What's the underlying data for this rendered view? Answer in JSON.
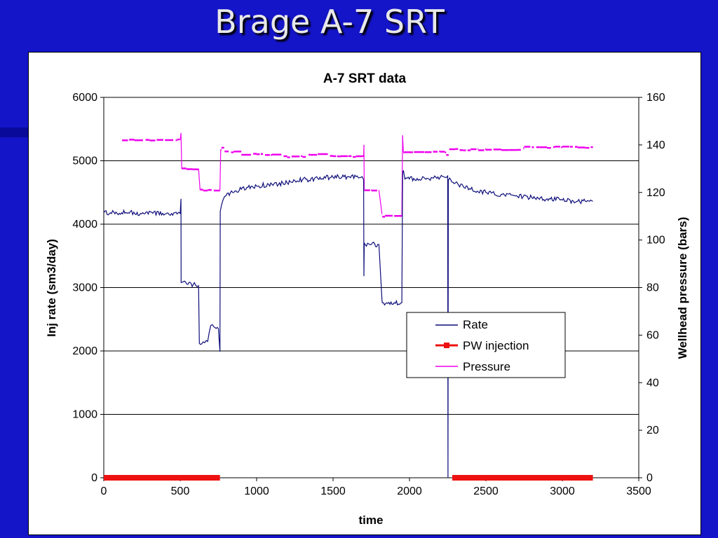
{
  "slide": {
    "title": "Brage A-7 SRT"
  },
  "chart_data": {
    "type": "line",
    "title": "A-7 SRT data",
    "xlabel": "time",
    "ylabel": "Inj rate (sm3/day)",
    "y2label": "Wellhead pressure (bars)",
    "xlim": [
      0,
      3500
    ],
    "ylim": [
      0,
      6000
    ],
    "y2lim": [
      0,
      160
    ],
    "xticks": [
      "0",
      "500",
      "1000",
      "1500",
      "2000",
      "2500",
      "3000",
      "3500"
    ],
    "yticks": [
      "0",
      "1000",
      "2000",
      "3000",
      "4000",
      "5000",
      "6000"
    ],
    "y2ticks": [
      "0",
      "20",
      "40",
      "60",
      "80",
      "100",
      "120",
      "140",
      "160"
    ],
    "grid": "horizontal",
    "legend_position": "lower-right",
    "colors": {
      "Rate": "#0d0d7a",
      "PW injection": "#ee1111",
      "Pressure": "#ee00ee"
    },
    "series": [
      {
        "name": "Rate",
        "axis": "left",
        "style": "line",
        "x": [
          0,
          80,
          160,
          240,
          320,
          400,
          480,
          500,
          505,
          506,
          550,
          600,
          620,
          625,
          640,
          660,
          680,
          700,
          720,
          750,
          760,
          762,
          770,
          780,
          800,
          850,
          900,
          1000,
          1100,
          1200,
          1300,
          1400,
          1500,
          1600,
          1650,
          1690,
          1700,
          1702,
          1704,
          1710,
          1750,
          1800,
          1820,
          1822,
          1830,
          1900,
          1950,
          1955,
          1960,
          1970,
          2050,
          2150,
          2230,
          2250,
          2252,
          2254,
          2256,
          2270,
          2300,
          2400,
          2500,
          2600,
          2700,
          2800,
          2900,
          3000,
          3100,
          3200
        ],
        "y": [
          4180,
          4190,
          4180,
          4170,
          4170,
          4160,
          4160,
          4170,
          4400,
          3080,
          3050,
          3040,
          3030,
          2120,
          2110,
          2130,
          2150,
          2400,
          2380,
          2350,
          1990,
          4200,
          4300,
          4380,
          4450,
          4500,
          4550,
          4600,
          4630,
          4650,
          4700,
          4720,
          4740,
          4750,
          4750,
          4750,
          4700,
          3180,
          3700,
          3680,
          3680,
          3680,
          2800,
          2760,
          2760,
          2760,
          2760,
          4800,
          4850,
          4710,
          4720,
          4730,
          4740,
          4760,
          0,
          4700,
          4700,
          4700,
          4650,
          4550,
          4500,
          4470,
          4450,
          4420,
          4400,
          4380,
          4360,
          4360
        ]
      },
      {
        "name": "PW injection",
        "axis": "left",
        "style": "markers",
        "ranges": [
          [
            0,
            760
          ],
          [
            2280,
            3200
          ]
        ],
        "y": 0
      },
      {
        "name": "Pressure",
        "axis": "right",
        "style": "line",
        "x": [
          120,
          200,
          300,
          400,
          480,
          500,
          505,
          510,
          540,
          580,
          620,
          630,
          650,
          680,
          720,
          760,
          765,
          770,
          790,
          850,
          900,
          1000,
          1100,
          1200,
          1300,
          1350,
          1400,
          1500,
          1550,
          1600,
          1650,
          1690,
          1700,
          1702,
          1704,
          1710,
          1750,
          1800,
          1820,
          1822,
          1840,
          1900,
          1950,
          1955,
          1960,
          1965,
          2000,
          2100,
          2200,
          2230,
          2232,
          2240,
          2260,
          2300,
          2350,
          2400,
          2450,
          2500,
          2550,
          2600,
          2650,
          2700,
          2750,
          2800,
          2850,
          2900,
          2950,
          3000,
          3050,
          3100,
          3150,
          3200
        ],
        "y": [
          142,
          142,
          142,
          142,
          142,
          142,
          145,
          130,
          130,
          130,
          130,
          121,
          121,
          121,
          121,
          121,
          138,
          139,
          137,
          137,
          136,
          136,
          136,
          135,
          135,
          136,
          136,
          135,
          135,
          135,
          135,
          135,
          135,
          140,
          121,
          121,
          121,
          121,
          111,
          110,
          110,
          110,
          110,
          144,
          137,
          137,
          137,
          137,
          137,
          137,
          137,
          136,
          138,
          138,
          138,
          138,
          138,
          138,
          138,
          138,
          138,
          138,
          139,
          139,
          139,
          139,
          139,
          139,
          139,
          139,
          139,
          139
        ]
      }
    ]
  }
}
